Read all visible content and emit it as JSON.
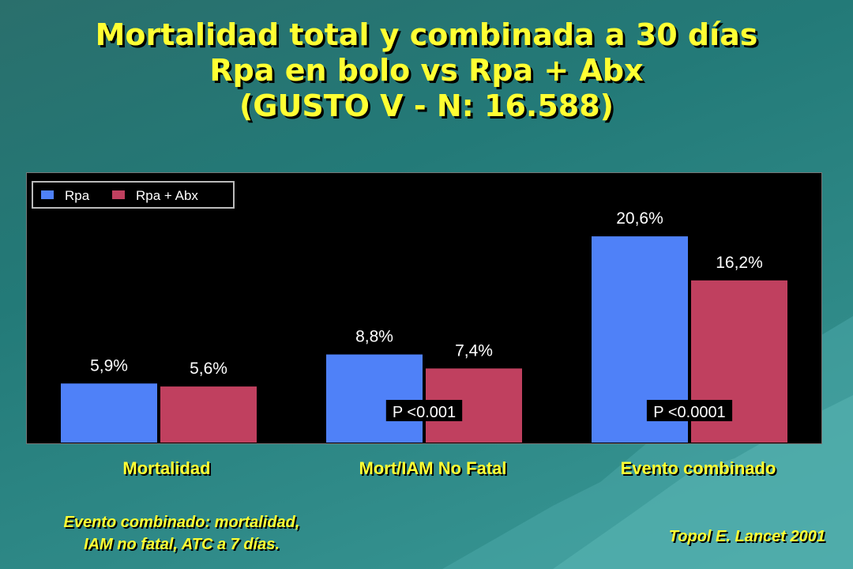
{
  "title": {
    "line1": "Mortalidad total y combinada a 30 días",
    "line2": "Rpa en bolo vs Rpa + Abx",
    "line3": "(GUSTO V - N: 16.588)"
  },
  "colors": {
    "rpa": "#4f81f8",
    "rpa_abx": "#c0405f",
    "title": "#ffff33"
  },
  "chart_data": {
    "type": "bar",
    "categories": [
      "Mortalidad",
      "Mort/IAM No Fatal",
      "Evento combinado"
    ],
    "series": [
      {
        "name": "Rpa",
        "values": [
          5.9,
          8.8,
          20.6
        ],
        "labels": [
          "5,9%",
          "8,8%",
          "20,6%"
        ]
      },
      {
        "name": "Rpa + Abx",
        "values": [
          5.6,
          7.4,
          16.2
        ],
        "labels": [
          "5,6%",
          "7,4%",
          "16,2%"
        ]
      }
    ],
    "ylim": [
      0,
      27
    ],
    "legend_position": "top-left",
    "annotations": [
      "",
      "P <0.001",
      "P <0.0001"
    ]
  },
  "footnote": {
    "line1": "Evento combinado: mortalidad,",
    "line2": "IAM no fatal, ATC a 7 días."
  },
  "reference": "Topol E. Lancet 2001"
}
